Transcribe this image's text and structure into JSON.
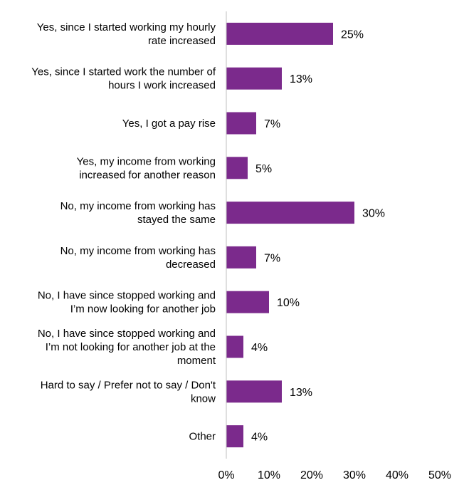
{
  "chart_data": {
    "type": "bar",
    "orientation": "horizontal",
    "title": "",
    "xlabel": "",
    "ylabel": "",
    "categories": [
      "Yes, since I started working my hourly rate increased",
      "Yes, since I started work the number of hours I work increased",
      "Yes, I got a pay rise",
      "Yes, my income from working increased for another reason",
      "No, my income from working has stayed the same",
      "No, my income from working has decreased",
      "No, I have since stopped working and I’m now looking for another job",
      "No, I have since stopped working and I’m not looking for another job at the moment",
      "Hard to say / Prefer not to say / Don't know",
      "Other"
    ],
    "category_label_lines": [
      [
        "Yes, since I started working my hourly",
        "rate increased"
      ],
      [
        "Yes, since I started work the number of",
        "hours I work increased"
      ],
      [
        "Yes, I got a pay rise"
      ],
      [
        "Yes, my income from working",
        "increased for another reason"
      ],
      [
        "No, my income from working has",
        "stayed the same"
      ],
      [
        "No, my income from working has",
        "decreased"
      ],
      [
        "No, I have since stopped working and",
        "I’m now looking for another job"
      ],
      [
        "No, I have since stopped working and",
        "I’m not looking for another job at the",
        "moment"
      ],
      [
        "Hard to say / Prefer not to say / Don't",
        "know"
      ],
      [
        "Other"
      ]
    ],
    "values": [
      25,
      13,
      7,
      5,
      30,
      7,
      10,
      4,
      13,
      4
    ],
    "value_labels": [
      "25%",
      "13%",
      "7%",
      "5%",
      "30%",
      "7%",
      "10%",
      "4%",
      "13%",
      "4%"
    ],
    "xlim": [
      0,
      50
    ],
    "x_ticks": [
      0,
      10,
      20,
      30,
      40,
      50
    ],
    "x_tick_labels": [
      "0%",
      "10%",
      "20%",
      "30%",
      "40%",
      "50%"
    ],
    "grid": false,
    "legend": "none",
    "bar_color": "#7B2A8C",
    "axis_color": "#BFBFBF"
  }
}
